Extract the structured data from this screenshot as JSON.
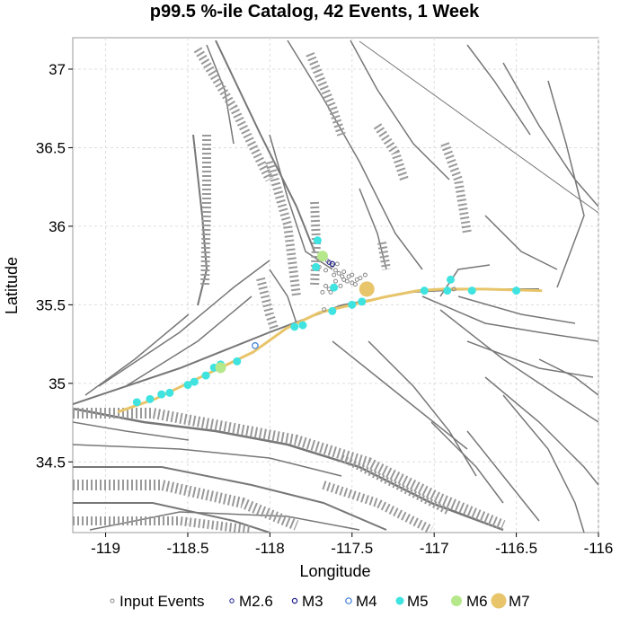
{
  "chart_data": {
    "type": "scatter",
    "title": "p99.5 %-ile Catalog, 42 Events, 1 Week",
    "xlabel": "Longitude",
    "ylabel": "Latitude",
    "xlim": [
      -119.2,
      -116.0
    ],
    "ylim": [
      34.05,
      37.2
    ],
    "x_ticks": [
      -119,
      -118.5,
      -118,
      -117.5,
      -117,
      -116.5,
      -116
    ],
    "x_tick_labels": [
      "-119",
      "-118.5",
      "-118",
      "-117.5",
      "-117",
      "-116.5",
      "-116"
    ],
    "y_ticks": [
      34.5,
      35,
      35.5,
      36,
      36.5,
      37
    ],
    "y_tick_labels": [
      "34.5",
      "35",
      "35.5",
      "36",
      "36.5",
      "37"
    ],
    "grid": true,
    "legend_position": "bottom",
    "legend": [
      "Input Events",
      "M2.6",
      "M3",
      "M4",
      "M5",
      "M6",
      "M7"
    ],
    "colors": {
      "input": "#888888",
      "m2_6": "#1a1a8a",
      "m3": "#1a1a8a",
      "m4": "#3a7fd8",
      "m5": "#3fe3e0",
      "m6": "#b5e88a",
      "m7": "#e8c56a",
      "rupture": "#e8c56a",
      "fault": "#777777",
      "fault_dotted": "#999999"
    },
    "rupture_line": {
      "x": [
        -118.92,
        -118.7,
        -118.5,
        -118.3,
        -118.1,
        -117.9,
        -117.7,
        -117.5,
        -117.3,
        -117.1,
        -116.95,
        -116.7,
        -116.35
      ],
      "y": [
        34.82,
        34.9,
        35.0,
        35.1,
        35.2,
        35.35,
        35.45,
        35.5,
        35.55,
        35.59,
        35.6,
        35.6,
        35.59
      ]
    },
    "series": [
      {
        "name": "Input Events",
        "x": [
          -117.65,
          -117.62,
          -117.6,
          -117.58,
          -117.56,
          -117.55,
          -117.53,
          -117.5,
          -117.48,
          -117.66,
          -117.64,
          -117.6,
          -117.57,
          -117.52,
          -117.45,
          -117.7,
          -117.63,
          -117.61,
          -117.59,
          -117.55,
          -117.5,
          -117.47,
          -117.68,
          -117.66,
          -116.92,
          -116.88,
          -117.67,
          -117.42
        ],
        "y": [
          35.78,
          35.75,
          35.72,
          35.7,
          35.68,
          35.66,
          35.65,
          35.64,
          35.63,
          35.62,
          35.6,
          35.65,
          35.62,
          35.68,
          35.67,
          35.74,
          35.58,
          35.69,
          35.76,
          35.71,
          35.69,
          35.66,
          35.58,
          35.72,
          35.59,
          35.6,
          35.47,
          35.69
        ]
      },
      {
        "name": "M2.6",
        "x": [
          -117.64
        ],
        "y": [
          35.77
        ]
      },
      {
        "name": "M3",
        "x": [
          -117.62
        ],
        "y": [
          35.76
        ]
      },
      {
        "name": "M4",
        "x": [
          -118.09
        ],
        "y": [
          35.24
        ]
      },
      {
        "name": "M5",
        "x": [
          -118.81,
          -118.73,
          -118.66,
          -118.61,
          -118.5,
          -118.46,
          -118.39,
          -118.34,
          -118.3,
          -118.2,
          -117.85,
          -117.8,
          -117.72,
          -117.71,
          -117.62,
          -117.5,
          -117.44,
          -117.06,
          -116.92,
          -116.9,
          -116.77,
          -116.5,
          -117.61
        ],
        "y": [
          34.88,
          34.9,
          34.93,
          34.94,
          34.99,
          35.01,
          35.05,
          35.1,
          35.12,
          35.14,
          35.36,
          35.37,
          35.74,
          35.91,
          35.46,
          35.5,
          35.52,
          35.59,
          35.59,
          35.66,
          35.59,
          35.59,
          35.61
        ]
      },
      {
        "name": "M6",
        "x": [
          -117.68,
          -118.3
        ],
        "y": [
          35.81,
          35.1
        ]
      },
      {
        "name": "M7",
        "x": [
          -117.41
        ],
        "y": [
          35.6
        ]
      }
    ]
  }
}
